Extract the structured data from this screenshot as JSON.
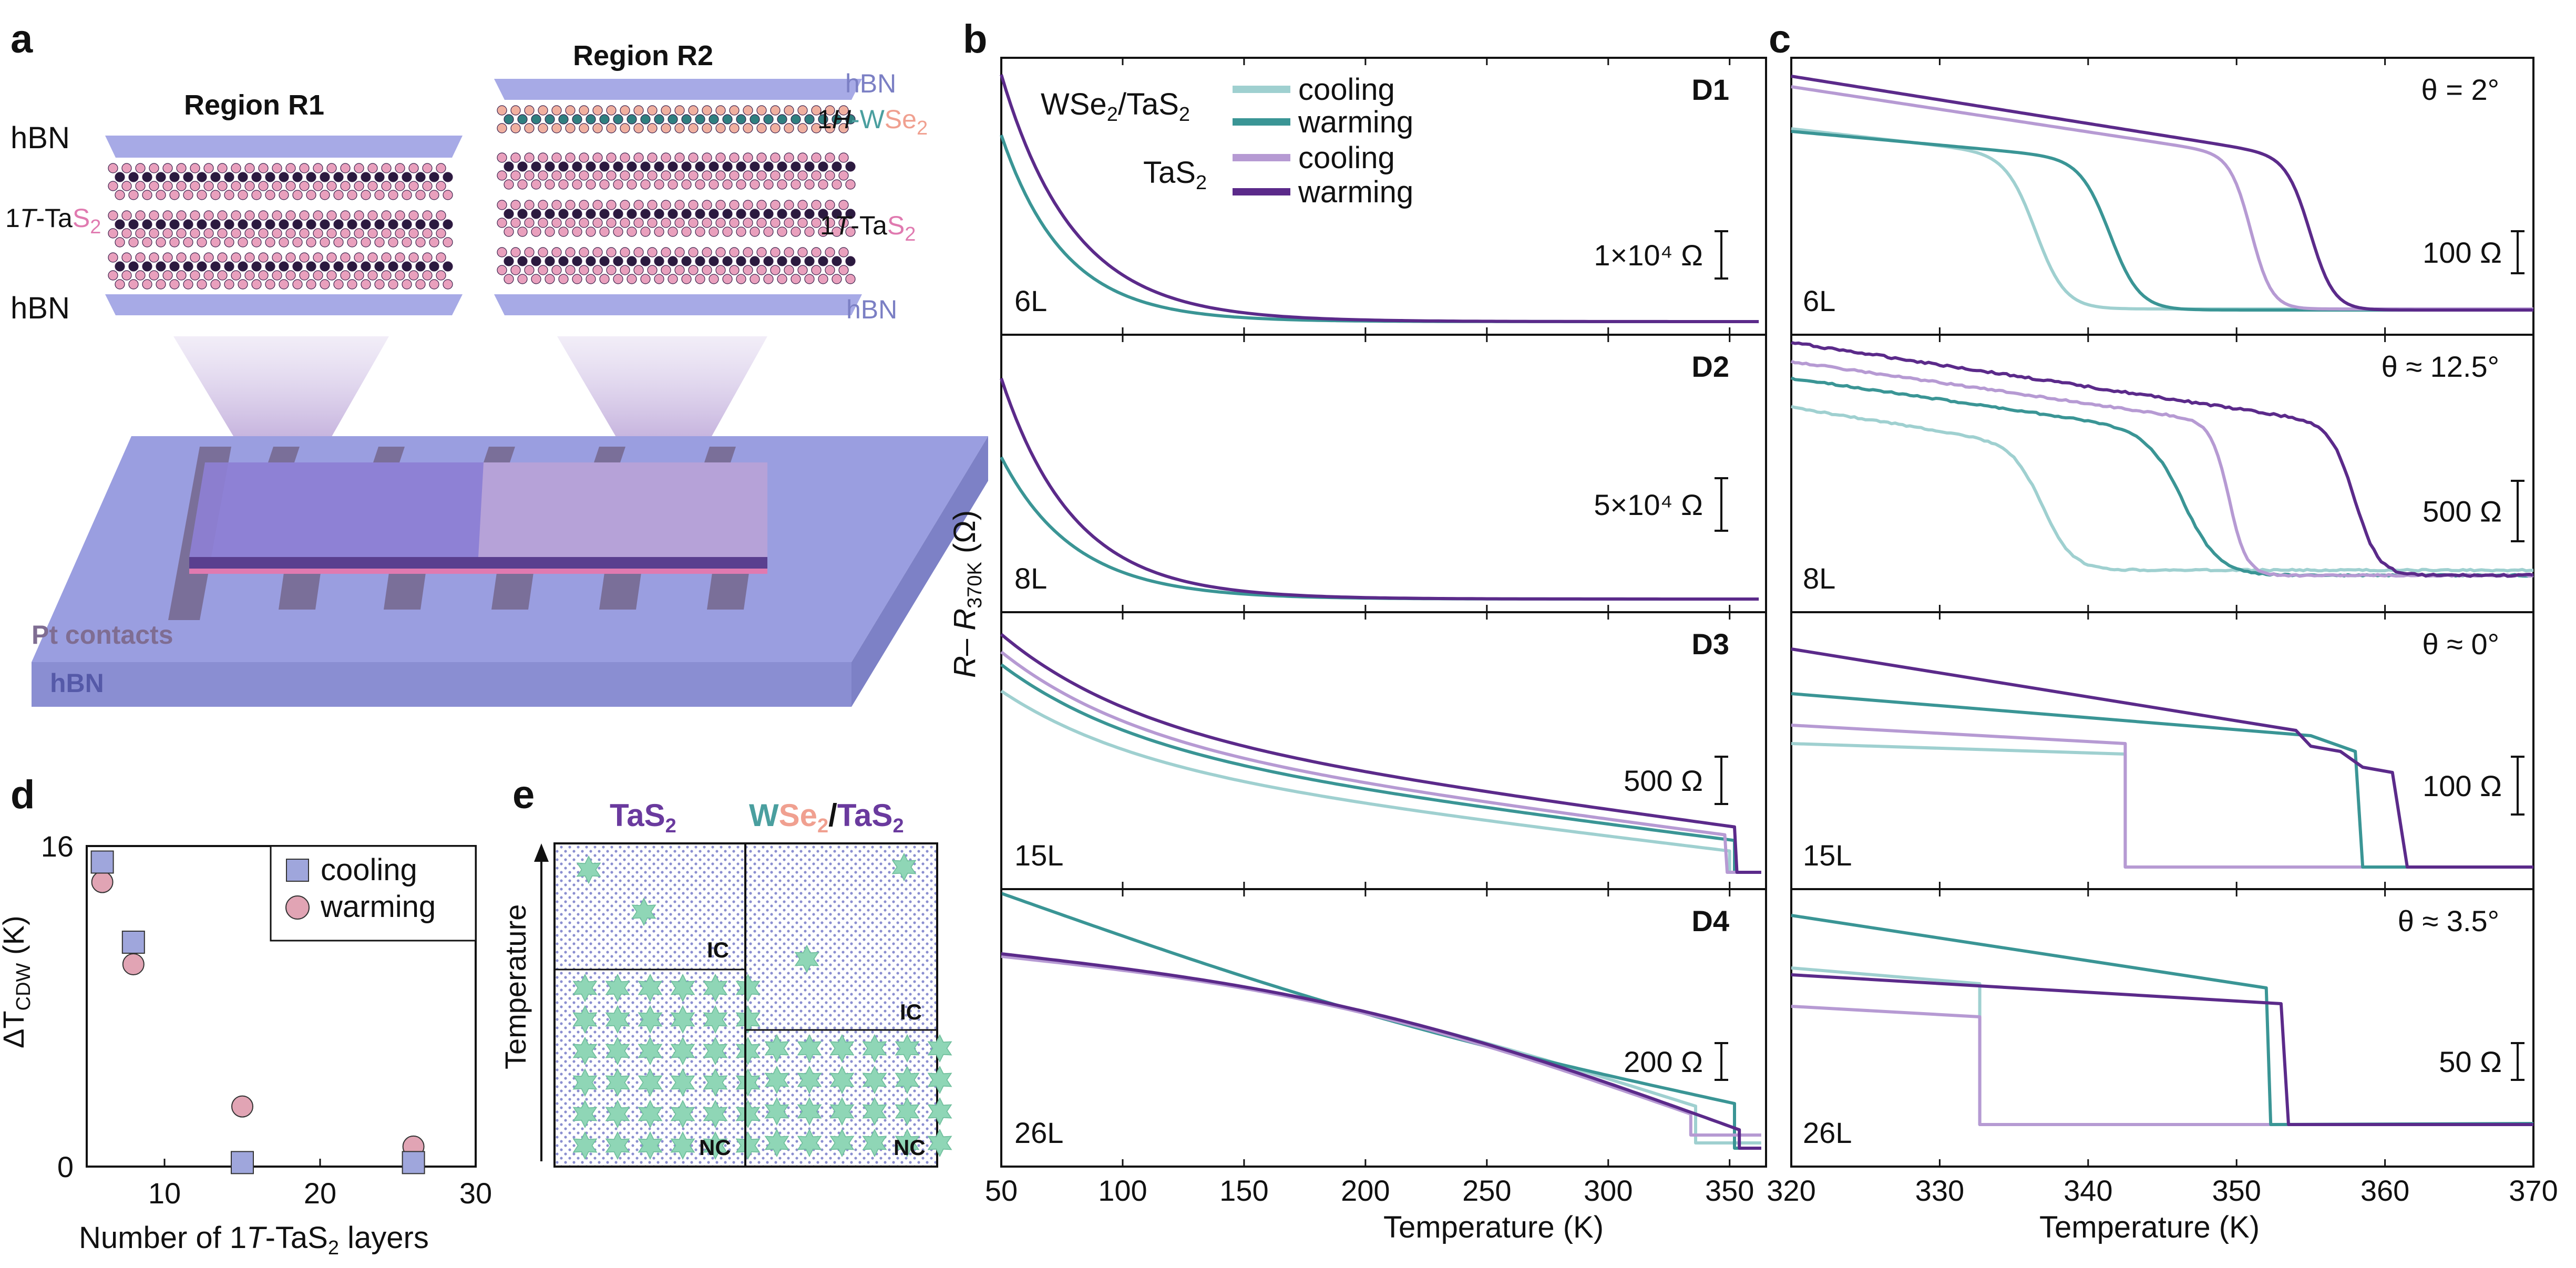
{
  "colors": {
    "cool_hetero": "#9fd0d0",
    "warm_hetero": "#3a9595",
    "cool_tas2": "#b69ad3",
    "warm_tas2": "#5b2a8a",
    "hbn": "#8f93d3",
    "pink": "#e07ab0",
    "teal": "#4a9f9f",
    "salmon": "#f0a090",
    "star": "#8fd6b6"
  },
  "panel_a": {
    "label": "a",
    "region1_title": "Region R1",
    "region2_title": "Region R2",
    "hbn": "hBN",
    "layer_1t_prefix": "1",
    "layer_1t_italic": "T",
    "layer_1t_ta": "-Ta",
    "layer_s": "S",
    "layer_sub2": "2",
    "layer_1h_prefix": "1",
    "layer_1h_italic": "H",
    "layer_1h_w": "-W",
    "layer_se": "Se",
    "pt_contacts": "Pt contacts",
    "hbn_substrate": "hBN"
  },
  "panel_b": {
    "label": "b",
    "xlabel": "Temperature (K)",
    "ylabel_r": "R",
    "ylabel_dash": "– ",
    "ylabel_r2": "R",
    "ylabel_sub": "370K",
    "ylabel_unit": " (Ω)",
    "legend_hetero_main": "WSe",
    "legend_hetero_sub": "2",
    "legend_hetero_rest": "/TaS",
    "legend_hetero_sub2": "2",
    "legend_tas2_main": "TaS",
    "legend_tas2_sub": "2",
    "legend_cooling": "cooling",
    "legend_warming": "warming",
    "xticks": [
      "50",
      "100",
      "150",
      "200",
      "250",
      "300",
      "350"
    ]
  },
  "panel_c": {
    "label": "c",
    "xlabel": "Temperature (K)",
    "xticks": [
      "320",
      "330",
      "340",
      "350",
      "360",
      "370"
    ]
  },
  "panel_d": {
    "label": "d",
    "xlabel_pre": "Number of 1",
    "xlabel_italic": "T",
    "xlabel_post": "-TaS",
    "xlabel_sub": "2",
    "xlabel_end": " layers",
    "ylabel_main": "ΔT",
    "ylabel_sub": "CDW",
    "ylabel_unit": " (K)",
    "legend_cooling": "cooling",
    "legend_warming": "warming",
    "xticks": [
      "10",
      "20",
      "30"
    ],
    "yticks": [
      "0",
      "16"
    ]
  },
  "panel_e": {
    "label": "e",
    "title_left_ta": "TaS",
    "title_left_sub": "2",
    "title_right_w": "W",
    "title_right_se": "Se",
    "title_right_sub": "2",
    "title_right_slash": "/",
    "title_right_ta": "TaS",
    "title_right_sub2": "2",
    "ylabel": "Temperature",
    "ic": "IC",
    "nc": "NC"
  },
  "chart_data": [
    {
      "panel": "b",
      "type": "line",
      "xlabel": "Temperature (K)",
      "ylabel": "R – R370K (Ω)",
      "xlim": [
        50,
        365
      ],
      "subpanels": [
        {
          "device": "D1",
          "layers": "6L",
          "scale_bar": "1×10⁴ Ω"
        },
        {
          "device": "D2",
          "layers": "8L",
          "scale_bar": "5×10⁴ Ω"
        },
        {
          "device": "D3",
          "layers": "15L",
          "scale_bar": "500 Ω"
        },
        {
          "device": "D4",
          "layers": "26L",
          "scale_bar": "200 Ω"
        }
      ],
      "series": [
        {
          "name": "WSe2/TaS2 cooling"
        },
        {
          "name": "WSe2/TaS2 warming"
        },
        {
          "name": "TaS2 cooling"
        },
        {
          "name": "TaS2 warming"
        }
      ]
    },
    {
      "panel": "c",
      "type": "line",
      "xlabel": "Temperature (K)",
      "xlim": [
        320,
        370
      ],
      "subpanels": [
        {
          "angle": "θ = 2°",
          "layers": "6L",
          "scale_bar": "100 Ω"
        },
        {
          "angle": "θ ≈ 12.5°",
          "layers": "8L",
          "scale_bar": "500 Ω"
        },
        {
          "angle": "θ  ≈ 0°",
          "layers": "15L",
          "scale_bar": "100 Ω"
        },
        {
          "angle": "θ ≈ 3.5°",
          "layers": "26L",
          "scale_bar": "50 Ω"
        }
      ]
    },
    {
      "panel": "d",
      "type": "scatter",
      "xlabel": "Number of 1T-TaS2 layers",
      "ylabel": "ΔT_CDW (K)",
      "xlim": [
        5,
        30
      ],
      "ylim": [
        0,
        16
      ],
      "series": [
        {
          "name": "cooling",
          "x": [
            6,
            8,
            15,
            26
          ],
          "y": [
            15.2,
            11.2,
            0.2,
            0.2
          ]
        },
        {
          "name": "warming",
          "x": [
            6,
            8,
            15,
            26
          ],
          "y": [
            14.2,
            10.1,
            3.0,
            1.0
          ]
        }
      ]
    }
  ]
}
